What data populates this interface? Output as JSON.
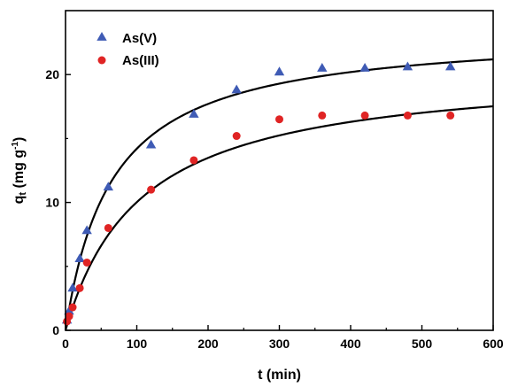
{
  "chart_data": {
    "type": "scatter",
    "xlabel": "t (min)",
    "ylabel_main": "q",
    "ylabel_sub": "t",
    "ylabel_unit": " (mg g",
    "ylabel_sup": "-1",
    "ylabel_close": ")",
    "xlim": [
      0,
      600
    ],
    "ylim": [
      0,
      25
    ],
    "xticks": [
      0,
      100,
      200,
      300,
      400,
      500,
      600
    ],
    "yticks": [
      0,
      10,
      20
    ],
    "legend_position": "top-left",
    "series": [
      {
        "name": "As(V)",
        "marker": "triangle",
        "color": "#3f5bb5",
        "x": [
          2,
          5,
          10,
          20,
          30,
          60,
          120,
          180,
          240,
          300,
          360,
          420,
          480,
          540
        ],
        "y": [
          0.8,
          1.5,
          3.3,
          5.6,
          7.8,
          11.2,
          14.5,
          16.9,
          18.8,
          20.2,
          20.5,
          20.5,
          20.6,
          20.6
        ],
        "fit": {
          "qe": 23.5,
          "k": 0.00065
        }
      },
      {
        "name": "As(III)",
        "marker": "circle",
        "color": "#e02424",
        "x": [
          2,
          5,
          10,
          20,
          30,
          60,
          120,
          180,
          240,
          300,
          360,
          420,
          480,
          540
        ],
        "y": [
          0.7,
          1.1,
          1.8,
          3.3,
          5.3,
          8.0,
          11.0,
          13.3,
          15.2,
          16.5,
          16.8,
          16.8,
          16.8,
          16.8
        ],
        "fit": {
          "qe": 20.6,
          "k": 0.00046
        }
      }
    ]
  }
}
